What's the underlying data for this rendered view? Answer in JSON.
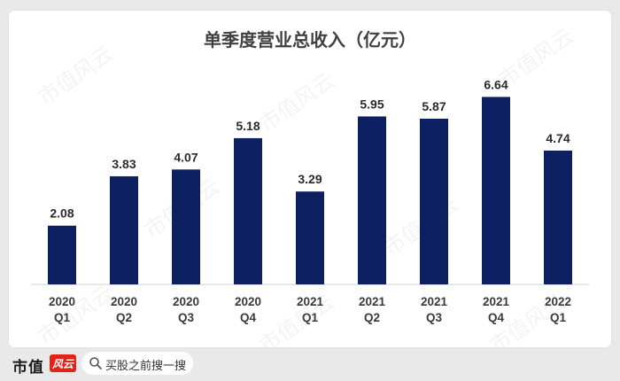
{
  "chart_data": {
    "type": "bar",
    "title": "单季度营业总收入（亿元）",
    "categories": [
      [
        "2020",
        "Q1"
      ],
      [
        "2020",
        "Q2"
      ],
      [
        "2020",
        "Q3"
      ],
      [
        "2020",
        "Q4"
      ],
      [
        "2021",
        "Q1"
      ],
      [
        "2021",
        "Q2"
      ],
      [
        "2021",
        "Q3"
      ],
      [
        "2021",
        "Q4"
      ],
      [
        "2022",
        "Q1"
      ]
    ],
    "values": [
      2.08,
      3.83,
      4.07,
      5.18,
      3.29,
      5.95,
      5.87,
      6.64,
      4.74
    ],
    "value_labels": [
      "2.08",
      "3.83",
      "4.07",
      "5.18",
      "3.29",
      "5.95",
      "5.87",
      "6.64",
      "4.74"
    ],
    "ylim": [
      0,
      7.5
    ],
    "xlabel": "",
    "ylabel": "",
    "grid": false,
    "bar_color": "#0c2061"
  },
  "watermark": {
    "text": "市值风云"
  },
  "footer": {
    "brand": "市值",
    "brand_logo_text": "风云",
    "search_placeholder": "买股之前搜一搜"
  }
}
